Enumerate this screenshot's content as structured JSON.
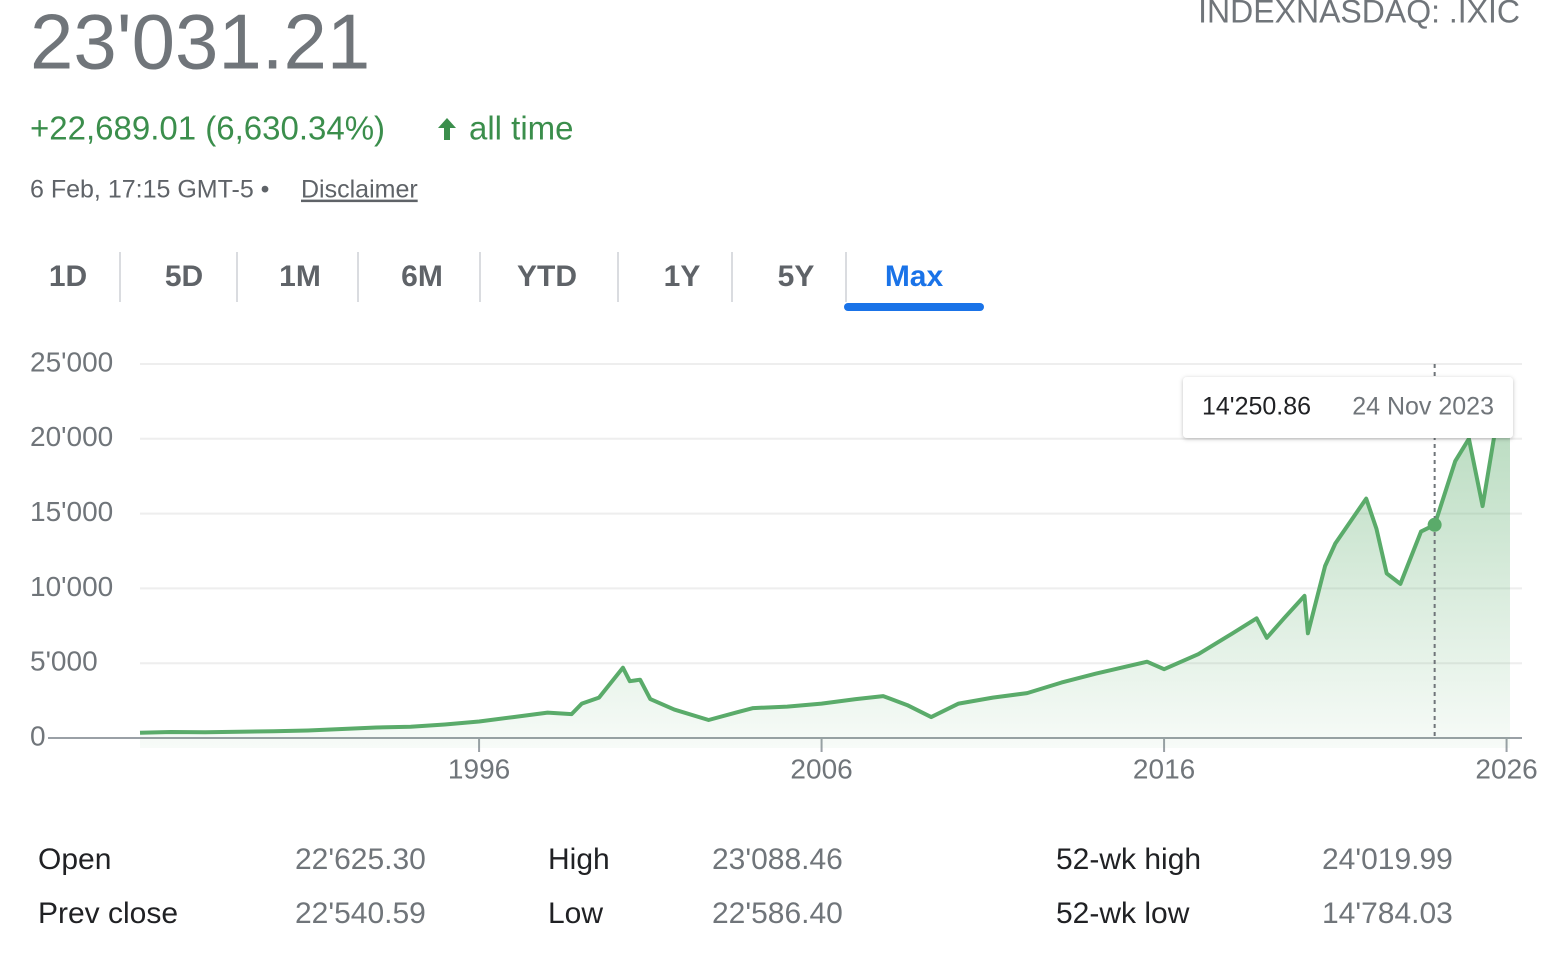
{
  "header": {
    "price": "23'031.21",
    "change": "+22,689.01 (6,630.34%)",
    "period": "all time",
    "timestamp": "6 Feb, 17:15 GMT-5 •",
    "disclaimer": "Disclaimer",
    "ticker": "INDEXNASDAQ: .IXIC"
  },
  "tabs": [
    "1D",
    "5D",
    "1M",
    "6M",
    "YTD",
    "1Y",
    "5Y",
    "Max"
  ],
  "active_tab": 7,
  "chart_data": {
    "type": "line",
    "color": "#5aab6a",
    "x": [
      1986.1,
      1987,
      1988,
      1989,
      1990,
      1991,
      1992,
      1993,
      1994,
      1995,
      1996,
      1997,
      1998,
      1998.7,
      1999,
      1999.5,
      2000.2,
      2000.4,
      2000.7,
      2001,
      2001.7,
      2002.7,
      2003.5,
      2004,
      2005,
      2006,
      2007,
      2007.8,
      2008.5,
      2009.2,
      2010,
      2011,
      2012,
      2013,
      2014,
      2015.5,
      2016,
      2017,
      2018,
      2018.7,
      2019,
      2019.5,
      2020.1,
      2020.2,
      2020.7,
      2021,
      2021.9,
      2022.2,
      2022.5,
      2022.9,
      2023.5,
      2023.9,
      2024.5,
      2024.9,
      2025.3,
      2025.7,
      2026.1
    ],
    "values": [
      350,
      400,
      380,
      420,
      450,
      500,
      600,
      700,
      750,
      900,
      1100,
      1400,
      1700,
      1600,
      2300,
      2700,
      4700,
      3800,
      3900,
      2600,
      1900,
      1200,
      1700,
      2000,
      2100,
      2300,
      2600,
      2800,
      2200,
      1400,
      2300,
      2700,
      3000,
      3700,
      4300,
      5100,
      4600,
      5600,
      7000,
      8000,
      6700,
      8000,
      9500,
      7000,
      11500,
      13000,
      16000,
      14000,
      11000,
      10300,
      13800,
      14250,
      18500,
      20000,
      15500,
      21000,
      23031
    ],
    "xlim": [
      1986.1,
      2026.1
    ],
    "xticks": [
      1996,
      2006,
      2016,
      2026
    ],
    "ylim": [
      0,
      25000
    ],
    "yticks": [
      0,
      {
        "value": 5000,
        "label": "5'000"
      },
      {
        "value": 10000,
        "label": "10'000"
      },
      {
        "value": 15000,
        "label": "15'000"
      },
      {
        "value": 20000,
        "label": "20'000"
      },
      {
        "value": 25000,
        "label": "25'000"
      }
    ],
    "grid": true,
    "tooltip": {
      "value": 14250.86,
      "label": "14'250.86",
      "x": 2023.9,
      "date": "24 Nov 2023"
    }
  },
  "stats": {
    "rows": [
      [
        "Open",
        "22'625.30",
        "High",
        "23'088.46",
        "52-wk high",
        "24'019.99"
      ],
      [
        "Prev close",
        "22'540.59",
        "Low",
        "22'586.40",
        "52-wk low",
        "14'784.03"
      ]
    ]
  }
}
